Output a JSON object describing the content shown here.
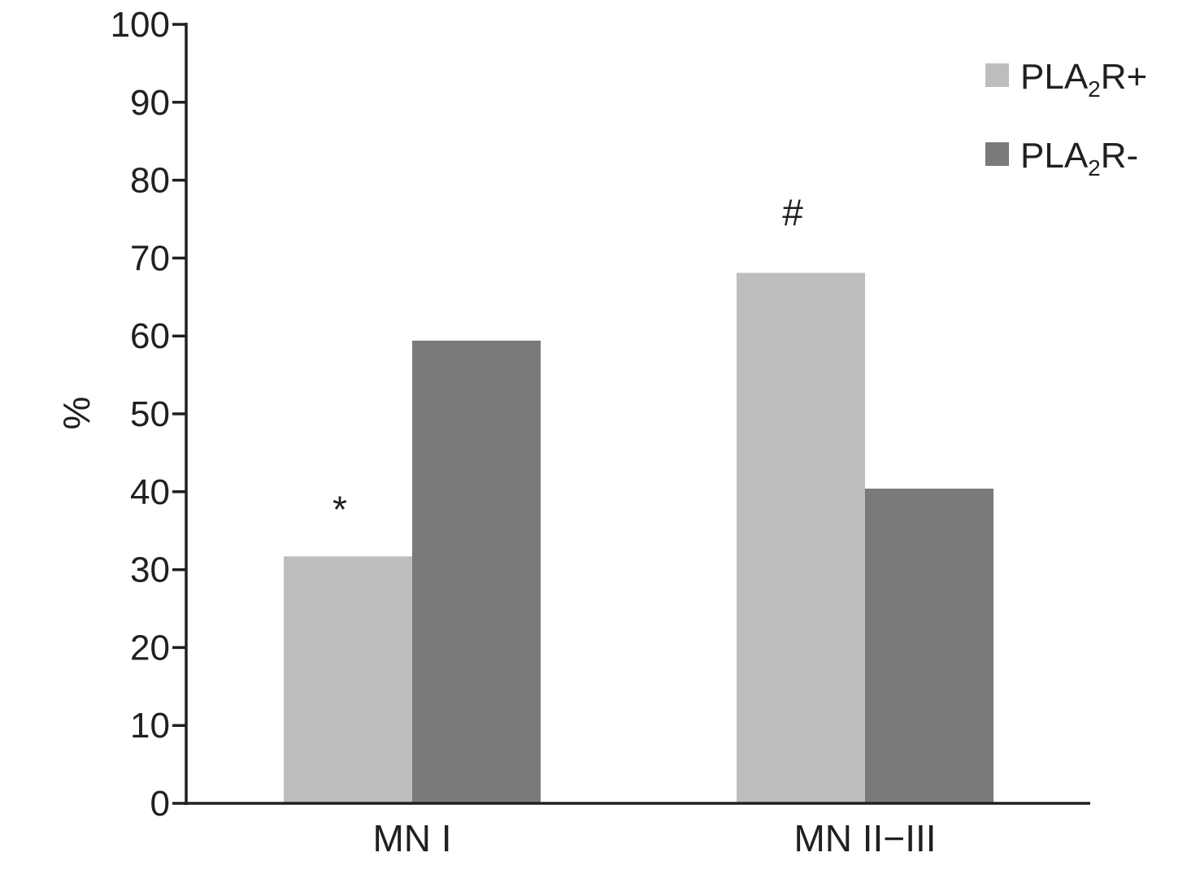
{
  "chart_data": {
    "type": "bar",
    "title": "",
    "xlabel": "",
    "ylabel": "%",
    "ylim": [
      0,
      100
    ],
    "yticks": [
      0,
      10,
      20,
      30,
      40,
      50,
      60,
      70,
      80,
      90,
      100
    ],
    "categories": [
      "MN I",
      "MN II−III"
    ],
    "series": [
      {
        "name": "PLA2R+",
        "name_main": "PLA",
        "name_sub": "2",
        "name_suffix": "R+",
        "color": "#bdbdbd",
        "values": [
          31.7,
          68.1
        ]
      },
      {
        "name": "PLA2R-",
        "name_main": "PLA",
        "name_sub": "2",
        "name_suffix": "R-",
        "color": "#7b797a",
        "values": [
          59.4,
          40.4
        ]
      }
    ],
    "annotations": [
      {
        "text": "*",
        "category": 0,
        "series": 0
      },
      {
        "text": "#",
        "category": 1,
        "series": 0
      }
    ],
    "grid": false,
    "legend_position": "top-right"
  }
}
